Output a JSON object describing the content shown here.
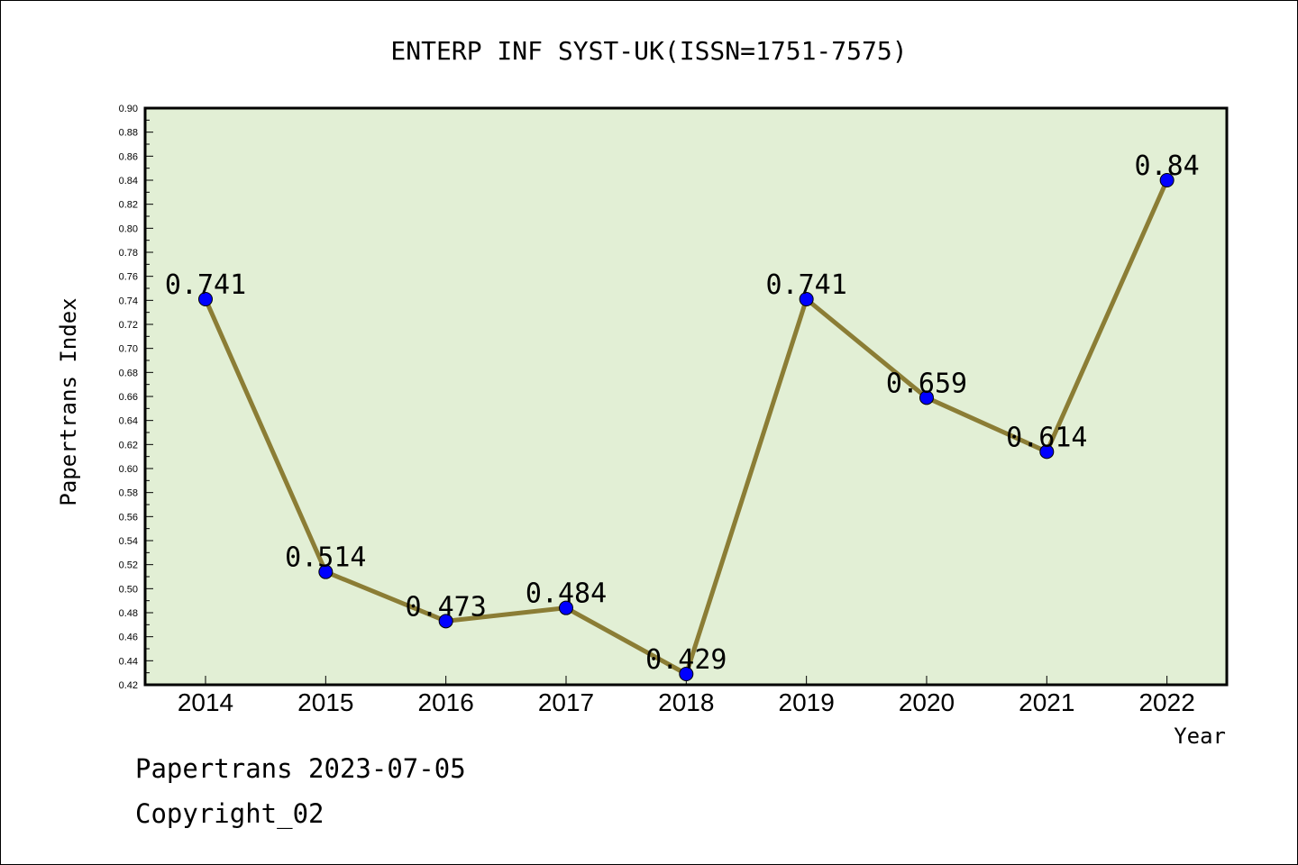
{
  "chart_data": {
    "type": "line",
    "title": "ENTERP INF SYST-UK(ISSN=1751-7575)",
    "xlabel": "Year",
    "ylabel": "Papertrans Index",
    "categories": [
      "2014",
      "2015",
      "2016",
      "2017",
      "2018",
      "2019",
      "2020",
      "2021",
      "2022"
    ],
    "series": [
      {
        "values": [
          0.741,
          0.514,
          0.473,
          0.484,
          0.429,
          0.741,
          0.659,
          0.614,
          0.84
        ],
        "labels": [
          "0.741",
          "0.514",
          "0.473",
          "0.484",
          "0.429",
          "0.741",
          "0.659",
          "0.614",
          "0.84"
        ]
      }
    ],
    "ylim": [
      0.42,
      0.9
    ],
    "yticks": [
      "0.42",
      "0.44",
      "0.46",
      "0.48",
      "0.50",
      "0.52",
      "0.54",
      "0.56",
      "0.58",
      "0.60",
      "0.62",
      "0.64",
      "0.66",
      "0.68",
      "0.70",
      "0.72",
      "0.74",
      "0.76",
      "0.78",
      "0.80",
      "0.82",
      "0.84",
      "0.86",
      "0.88",
      "0.90"
    ],
    "grid": false,
    "legend": "none"
  },
  "footer": {
    "line1": "Papertrans 2023-07-05",
    "line2": "Copyright_02"
  },
  "colors": {
    "plot_bg": "#e2efd5",
    "line": "#8b7d35",
    "marker": "#0000ff"
  }
}
